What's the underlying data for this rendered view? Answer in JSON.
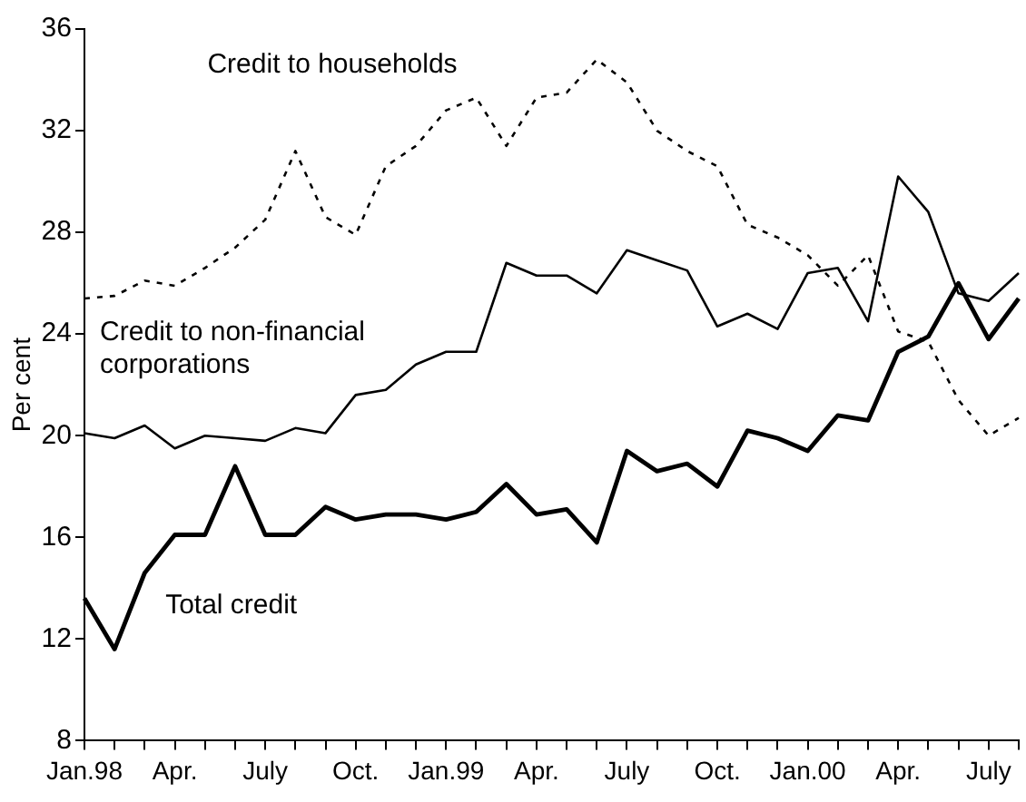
{
  "chart_data": {
    "type": "line",
    "ylabel": "Per cent",
    "categories": [
      "Jan.98",
      null,
      null,
      "Apr.",
      null,
      null,
      "July",
      null,
      null,
      "Oct.",
      null,
      null,
      "Jan.99",
      null,
      null,
      "Apr.",
      null,
      null,
      "July",
      null,
      null,
      "Oct.",
      null,
      null,
      "Jan.00",
      null,
      null,
      "Apr.",
      null,
      null,
      "July",
      null
    ],
    "series": [
      {
        "name": "Credit to households",
        "color": "#000000",
        "line_style": "dashed",
        "values": [
          25.4,
          25.5,
          26.1,
          25.9,
          26.6,
          27.4,
          28.5,
          31.2,
          28.6,
          27.9,
          30.6,
          31.4,
          32.8,
          33.3,
          31.4,
          33.3,
          33.5,
          34.8,
          33.9,
          32.0,
          31.2,
          30.6,
          28.3,
          27.8,
          27.1,
          25.9,
          27.1,
          24.1,
          23.7,
          21.4,
          20.0,
          20.7
        ]
      },
      {
        "name": "Credit to non-financial corporations",
        "color": "#000000",
        "line_style": "solid",
        "values": [
          20.1,
          19.9,
          20.4,
          19.5,
          20.0,
          19.9,
          19.8,
          20.3,
          20.1,
          21.6,
          21.8,
          22.8,
          23.3,
          23.3,
          26.8,
          26.3,
          26.3,
          25.6,
          27.3,
          26.9,
          26.5,
          24.3,
          24.8,
          24.2,
          26.4,
          26.6,
          24.5,
          30.2,
          28.8,
          25.6,
          25.3,
          26.4
        ]
      },
      {
        "name": "Total credit",
        "color": "#000000",
        "line_style": "solid",
        "values": [
          13.6,
          11.6,
          14.6,
          16.1,
          16.1,
          18.8,
          16.1,
          16.1,
          17.2,
          16.7,
          16.9,
          16.9,
          16.7,
          17.0,
          18.1,
          16.9,
          17.1,
          15.8,
          19.4,
          18.6,
          18.9,
          18.0,
          20.2,
          19.9,
          19.4,
          20.8,
          20.6,
          23.3,
          23.9,
          26.0,
          23.8,
          25.4
        ]
      }
    ],
    "ylim": [
      8,
      36
    ],
    "yticks": [
      8,
      12,
      16,
      20,
      24,
      28,
      32,
      36
    ],
    "grid": false,
    "legend": false,
    "marker": "none"
  }
}
